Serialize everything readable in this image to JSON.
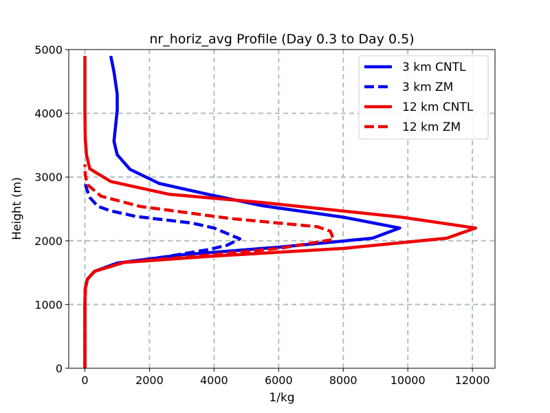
{
  "chart_data": {
    "type": "line",
    "title": "nr_horiz_avg Profile (Day 0.3 to Day 0.5)",
    "xlabel": "1/kg",
    "ylabel": "Height (m)",
    "xlim": [
      -500,
      12700
    ],
    "ylim": [
      0,
      5000
    ],
    "xticks": [
      0,
      2000,
      4000,
      6000,
      8000,
      10000,
      12000
    ],
    "yticks": [
      0,
      1000,
      2000,
      3000,
      4000,
      5000
    ],
    "grid": true,
    "legend_position": "top-right",
    "series": [
      {
        "name": "3 km CNTL",
        "color": "#0000ee",
        "dash": "solid",
        "points": [
          [
            0,
            0
          ],
          [
            0,
            1000
          ],
          [
            10,
            1250
          ],
          [
            80,
            1400
          ],
          [
            300,
            1520
          ],
          [
            1000,
            1650
          ],
          [
            3000,
            1780
          ],
          [
            6000,
            1900
          ],
          [
            8900,
            2040
          ],
          [
            9750,
            2200
          ],
          [
            8000,
            2370
          ],
          [
            5500,
            2550
          ],
          [
            3800,
            2730
          ],
          [
            2300,
            2900
          ],
          [
            1400,
            3120
          ],
          [
            1000,
            3350
          ],
          [
            900,
            3560
          ],
          [
            950,
            3800
          ],
          [
            1000,
            4050
          ],
          [
            1000,
            4300
          ],
          [
            900,
            4650
          ],
          [
            800,
            4900
          ]
        ]
      },
      {
        "name": "3 km ZM",
        "color": "#0000ee",
        "dash": "dashed",
        "points": [
          [
            0,
            0
          ],
          [
            0,
            1000
          ],
          [
            10,
            1250
          ],
          [
            80,
            1400
          ],
          [
            300,
            1520
          ],
          [
            1000,
            1650
          ],
          [
            2500,
            1750
          ],
          [
            3800,
            1860
          ],
          [
            4400,
            1930
          ],
          [
            4800,
            2030
          ],
          [
            4000,
            2200
          ],
          [
            3300,
            2280
          ],
          [
            1600,
            2380
          ],
          [
            800,
            2470
          ],
          [
            400,
            2540
          ],
          [
            150,
            2680
          ],
          [
            30,
            2850
          ],
          [
            10,
            2950
          ]
        ]
      },
      {
        "name": "12 km CNTL",
        "color": "#ee0000",
        "dash": "solid",
        "points": [
          [
            0,
            0
          ],
          [
            0,
            1000
          ],
          [
            10,
            1250
          ],
          [
            80,
            1400
          ],
          [
            300,
            1520
          ],
          [
            1200,
            1660
          ],
          [
            4000,
            1760
          ],
          [
            8000,
            1880
          ],
          [
            11200,
            2040
          ],
          [
            12100,
            2200
          ],
          [
            9800,
            2370
          ],
          [
            5500,
            2600
          ],
          [
            2600,
            2730
          ],
          [
            800,
            2930
          ],
          [
            150,
            3130
          ],
          [
            50,
            3350
          ],
          [
            10,
            3600
          ],
          [
            0,
            4000
          ],
          [
            0,
            4500
          ],
          [
            0,
            4900
          ]
        ]
      },
      {
        "name": "12 km ZM",
        "color": "#ee0000",
        "dash": "dashed",
        "points": [
          [
            0,
            0
          ],
          [
            0,
            1000
          ],
          [
            10,
            1250
          ],
          [
            80,
            1400
          ],
          [
            300,
            1520
          ],
          [
            1200,
            1660
          ],
          [
            3500,
            1760
          ],
          [
            6000,
            1880
          ],
          [
            7700,
            2020
          ],
          [
            7600,
            2150
          ],
          [
            7200,
            2220
          ],
          [
            4500,
            2350
          ],
          [
            1700,
            2540
          ],
          [
            500,
            2700
          ],
          [
            80,
            2880
          ],
          [
            10,
            3030
          ],
          [
            0,
            3200
          ]
        ]
      }
    ]
  }
}
